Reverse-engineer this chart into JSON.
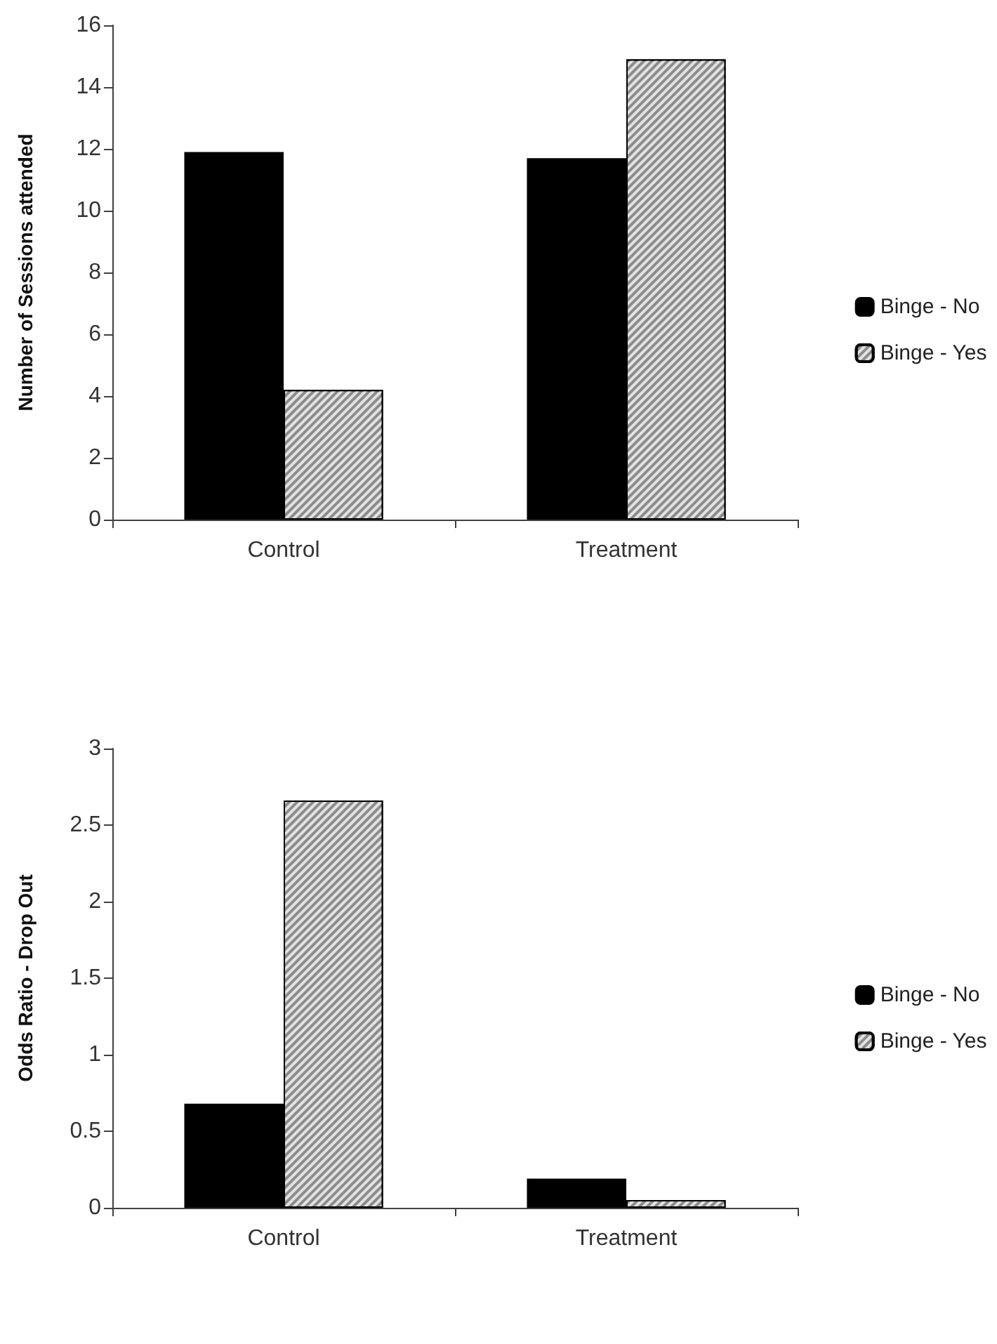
{
  "chart_data": [
    {
      "type": "bar",
      "ylabel": "Number of Sessions attended",
      "categories": [
        "Control",
        "Treatment"
      ],
      "series": [
        {
          "name": "Binge - No",
          "color": "#000000",
          "values": [
            11.9,
            11.7
          ]
        },
        {
          "name": "Binge - Yes",
          "color": "#8c8c8c",
          "values": [
            4.2,
            14.9
          ]
        }
      ],
      "ylim": [
        0,
        16
      ],
      "yticks": [
        0,
        2,
        4,
        6,
        8,
        10,
        12,
        14,
        16
      ],
      "grid": false,
      "legend": "right"
    },
    {
      "type": "bar",
      "ylabel": "Odds Ratio - Drop Out",
      "categories": [
        "Control",
        "Treatment"
      ],
      "series": [
        {
          "name": "Binge - No",
          "color": "#000000",
          "values": [
            0.68,
            0.19
          ]
        },
        {
          "name": "Binge - Yes",
          "color": "#8c8c8c",
          "values": [
            2.66,
            0.05
          ]
        }
      ],
      "ylim": [
        0,
        3
      ],
      "yticks": [
        0,
        0.5,
        1,
        1.5,
        2,
        2.5,
        3
      ],
      "grid": false,
      "legend": "right"
    }
  ]
}
